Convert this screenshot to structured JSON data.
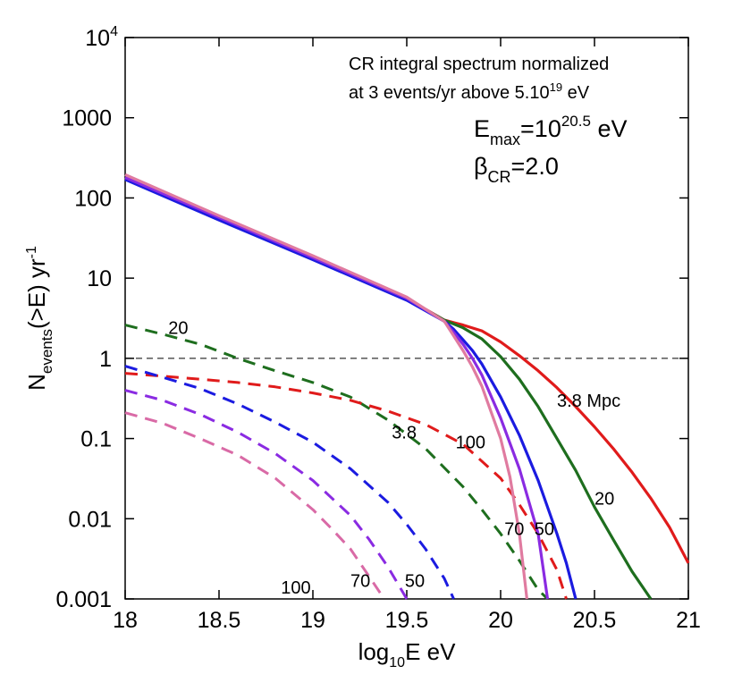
{
  "chart_data": {
    "type": "line",
    "xlim": [
      18,
      21
    ],
    "ylim_log10": [
      -3,
      4
    ],
    "x_ticks": [
      "18",
      "18.5",
      "19",
      "19.5",
      "20",
      "20.5",
      "21"
    ],
    "y_ticks": [
      {
        "base": "10",
        "sup": "4"
      },
      {
        "base": "1000",
        "sup": ""
      },
      {
        "base": "100",
        "sup": ""
      },
      {
        "base": "10",
        "sup": ""
      },
      {
        "base": "1",
        "sup": ""
      },
      {
        "base": "0.1",
        "sup": ""
      },
      {
        "base": "0.01",
        "sup": ""
      },
      {
        "base": "0.001",
        "sup": ""
      }
    ],
    "xlabel": {
      "a": "log",
      "sub": "10",
      "b": "E eV"
    },
    "ylabel": {
      "a": "N",
      "sub": "events",
      "b": "(>E) yr",
      "sup": "-1"
    },
    "title_line1": "CR integral spectrum normalized",
    "title_line2": {
      "a": "at 3 events/yr above 5.10",
      "sup": "19",
      "b": " eV"
    },
    "emax": {
      "a": "E",
      "sub": "max",
      "b": "=10",
      "sup": "20.5",
      "c": " eV"
    },
    "beta": {
      "a": "β",
      "sub": "CR",
      "b": "=2.0"
    },
    "reference_line": {
      "y": 1,
      "style": "dashed"
    },
    "series": [
      {
        "name": "3.8 Mpc",
        "kind": "CR",
        "color": "#e01b1b",
        "x": [
          18,
          18.5,
          19,
          19.5,
          19.7,
          19.8,
          19.9,
          20,
          20.1,
          20.2,
          20.3,
          20.4,
          20.5,
          20.6,
          20.7,
          20.8,
          20.9,
          21
        ],
        "y": [
          178,
          56,
          17.8,
          5.6,
          3,
          2.6,
          2.2,
          1.6,
          1.08,
          0.7,
          0.43,
          0.25,
          0.14,
          0.075,
          0.038,
          0.018,
          0.0078,
          0.0028
        ]
      },
      {
        "name": "20",
        "kind": "CR",
        "color": "#1e6e1e",
        "x": [
          18,
          18.5,
          19,
          19.5,
          19.7,
          19.8,
          19.9,
          20,
          20.1,
          20.2,
          20.3,
          20.4,
          20.5,
          20.6,
          20.7,
          20.8
        ],
        "y": [
          175,
          55,
          17.5,
          5.5,
          3,
          2.4,
          1.75,
          1.05,
          0.55,
          0.25,
          0.1,
          0.04,
          0.014,
          0.0055,
          0.0022,
          0.001
        ]
      },
      {
        "name": "50",
        "kind": "CR",
        "color": "#1b1be0",
        "x": [
          18,
          18.5,
          19,
          19.5,
          19.7,
          19.75,
          19.8,
          19.85,
          19.9,
          20,
          20.1,
          20.2,
          20.3,
          20.35,
          20.4
        ],
        "y": [
          170,
          53,
          17,
          5.3,
          2.9,
          2.3,
          1.7,
          1.25,
          0.85,
          0.33,
          0.11,
          0.03,
          0.0065,
          0.0028,
          0.001
        ]
      },
      {
        "name": "70",
        "kind": "CR",
        "color": "#8a2be2",
        "x": [
          18,
          18.5,
          19,
          19.5,
          19.7,
          19.75,
          19.8,
          19.85,
          19.9,
          20,
          20.1,
          20.2,
          20.25
        ],
        "y": [
          180,
          57,
          18,
          5.6,
          2.9,
          2.1,
          1.5,
          1.0,
          0.62,
          0.18,
          0.042,
          0.0065,
          0.001
        ]
      },
      {
        "name": "100",
        "kind": "CR",
        "color": "#e07ba0",
        "x": [
          18,
          18.5,
          19,
          19.5,
          19.7,
          19.75,
          19.8,
          19.85,
          19.9,
          20,
          20.05,
          20.1,
          20.14
        ],
        "y": [
          195,
          60,
          19,
          5.8,
          2.9,
          1.9,
          1.25,
          0.78,
          0.45,
          0.1,
          0.033,
          0.0065,
          0.001
        ]
      },
      {
        "name": "20",
        "kind": "neutrino",
        "color": "#1e6e1e",
        "x": [
          18,
          18.2,
          18.4,
          18.6,
          18.8,
          19,
          19.2,
          19.4,
          19.6,
          19.8,
          19.9,
          20,
          20.1,
          20.2,
          20.25
        ],
        "y": [
          2.6,
          2.0,
          1.5,
          1.0,
          0.7,
          0.5,
          0.33,
          0.17,
          0.075,
          0.025,
          0.013,
          0.0065,
          0.003,
          0.0013,
          0.001
        ]
      },
      {
        "name": "3.8",
        "kind": "neutrino",
        "color": "#e01b1b",
        "x": [
          18,
          18.2,
          18.4,
          18.6,
          18.8,
          19,
          19.2,
          19.4,
          19.6,
          19.8,
          20,
          20.1,
          20.2,
          20.3,
          20.35
        ],
        "y": [
          0.65,
          0.6,
          0.55,
          0.5,
          0.44,
          0.37,
          0.3,
          0.22,
          0.15,
          0.085,
          0.032,
          0.015,
          0.0065,
          0.0023,
          0.001
        ]
      },
      {
        "name": "50",
        "kind": "neutrino",
        "color": "#1b1be0",
        "x": [
          18,
          18.2,
          18.4,
          18.6,
          18.8,
          19,
          19.2,
          19.4,
          19.5,
          19.6,
          19.7,
          19.75
        ],
        "y": [
          0.8,
          0.58,
          0.42,
          0.27,
          0.16,
          0.09,
          0.042,
          0.016,
          0.0085,
          0.0042,
          0.0018,
          0.001
        ]
      },
      {
        "name": "70",
        "kind": "neutrino",
        "color": "#8a2be2",
        "x": [
          18,
          18.2,
          18.4,
          18.6,
          18.8,
          19,
          19.2,
          19.3,
          19.4,
          19.5
        ],
        "y": [
          0.4,
          0.3,
          0.2,
          0.12,
          0.065,
          0.03,
          0.011,
          0.0055,
          0.0025,
          0.001
        ]
      },
      {
        "name": "100",
        "kind": "neutrino",
        "color": "#d96aa6",
        "x": [
          18,
          18.2,
          18.4,
          18.6,
          18.8,
          19,
          19.1,
          19.2,
          19.3,
          19.38
        ],
        "y": [
          0.21,
          0.155,
          0.1,
          0.062,
          0.032,
          0.013,
          0.0075,
          0.0042,
          0.0019,
          0.001
        ]
      }
    ],
    "curve_labels": [
      {
        "text": "3.8 Mpc",
        "x": 20.3,
        "y": 0.3
      },
      {
        "text": "20",
        "x": 20.5,
        "y": 0.018
      },
      {
        "text": "70",
        "x": 20.02,
        "y": 0.0075
      },
      {
        "text": "50",
        "x": 20.18,
        "y": 0.0075
      },
      {
        "text": "100",
        "x": 19.76,
        "y": 0.09
      },
      {
        "text": "3.8",
        "x": 19.42,
        "y": 0.12
      },
      {
        "text": "20",
        "x": 18.23,
        "y": 2.4
      },
      {
        "text": "100",
        "x": 18.83,
        "y": 0.0014
      },
      {
        "text": "70",
        "x": 19.2,
        "y": 0.0017
      },
      {
        "text": "50",
        "x": 19.49,
        "y": 0.0017
      }
    ]
  }
}
